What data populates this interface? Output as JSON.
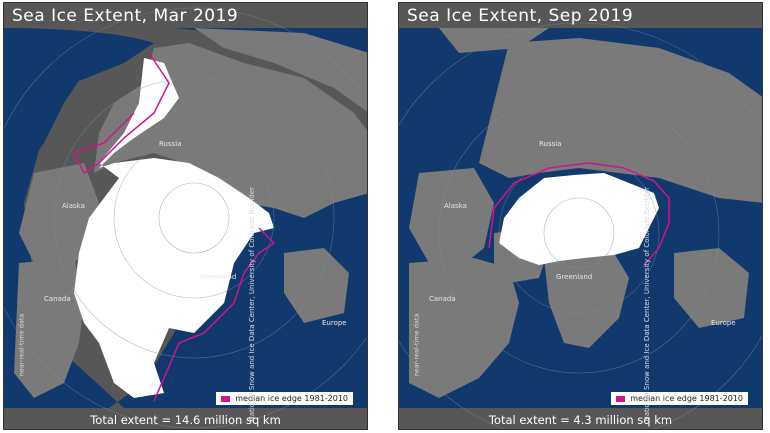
{
  "panels": [
    {
      "title": "Sea Ice Extent, Mar 2019",
      "total": "Total extent = 14.6 million sq km",
      "legend": "median ice edge 1981-2010",
      "credit": "National Snow and Ice Data Center, University of Colorado Boulder",
      "near_real_time": "near-real-time data",
      "labels": {
        "russia": "Russia",
        "alaska": "Alaska",
        "canada": "Canada",
        "greenland": "Greenland",
        "europe": "Europe"
      }
    },
    {
      "title": "Sea Ice Extent, Sep 2019",
      "total": "Total extent = 4.3 million sq km",
      "legend": "median ice edge 1981-2010",
      "credit": "National Snow and Ice Data Center, University of Colorado Boulder",
      "near_real_time": "near-real-time data",
      "labels": {
        "russia": "Russia",
        "alaska": "Alaska",
        "canada": "Canada",
        "greenland": "Greenland",
        "europe": "Europe"
      }
    }
  ],
  "colors": {
    "ocean": "#12396e",
    "land": "#7a7a7a",
    "ice": "#ffffff",
    "median_edge": "#d0158a"
  }
}
